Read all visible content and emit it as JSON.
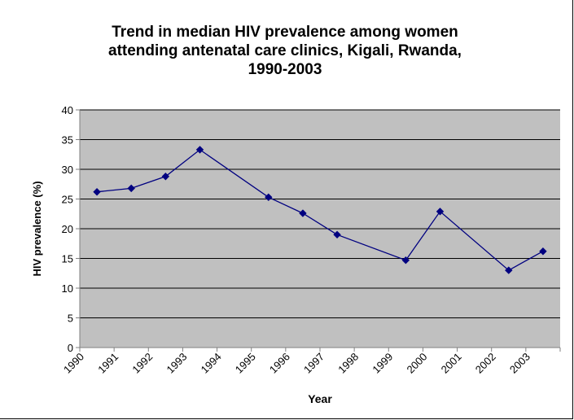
{
  "chart_data": {
    "type": "line",
    "title_lines": [
      "Trend in median HIV prevalence among women",
      "attending antenatal care clinics, Kigali, Rwanda,",
      "1990-2003"
    ],
    "xlabel": "Year",
    "ylabel": "HIV prevalence (%)",
    "ylim": [
      0,
      40
    ],
    "y_ticks": [
      "0",
      "5",
      "10",
      "15",
      "20",
      "25",
      "30",
      "35",
      "40"
    ],
    "categories": [
      "1990",
      "1991",
      "1992",
      "1993",
      "1994",
      "1995",
      "1996",
      "1997",
      "1998",
      "1999",
      "2000",
      "2001",
      "2002",
      "2003"
    ],
    "points": [
      {
        "x": 1990,
        "y": 26.2
      },
      {
        "x": 1991,
        "y": 26.8
      },
      {
        "x": 1992,
        "y": 28.8
      },
      {
        "x": 1993,
        "y": 33.3
      },
      {
        "x": 1995,
        "y": 25.3
      },
      {
        "x": 1996,
        "y": 22.6
      },
      {
        "x": 1997,
        "y": 19.0
      },
      {
        "x": 1999,
        "y": 14.7
      },
      {
        "x": 2000,
        "y": 22.9
      },
      {
        "x": 2002,
        "y": 13.0
      },
      {
        "x": 2003,
        "y": 16.2
      }
    ],
    "grid": true,
    "plot_bg": "#C0C0C0",
    "series_color": "#000080"
  }
}
